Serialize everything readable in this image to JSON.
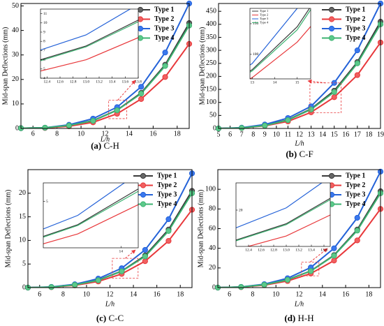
{
  "chart_data": [
    {
      "type": "line",
      "caption_label": "(a)",
      "caption_name": "C-H",
      "xlabel": "L/h",
      "ylabel": "Mid-span Deflections (mm)",
      "x": [
        5,
        7,
        9,
        11,
        13,
        15,
        17,
        19
      ],
      "xlim": [
        5,
        19
      ],
      "xticks": [
        6,
        8,
        10,
        12,
        14,
        16,
        18
      ],
      "ylim": [
        0,
        51
      ],
      "yticks": [
        0,
        10,
        20,
        30,
        40,
        50
      ],
      "series": [
        {
          "name": "Type 1",
          "color": "#3a3a3a",
          "values": [
            0.1,
            0.3,
            1.2,
            3.2,
            7.5,
            14.5,
            26,
            43
          ]
        },
        {
          "name": "Type 2",
          "color": "#e8383b",
          "values": [
            0.1,
            0.2,
            0.9,
            2.5,
            6.0,
            12,
            21,
            34.5
          ]
        },
        {
          "name": "Type 3",
          "color": "#2462d8",
          "values": [
            0.1,
            0.3,
            1.5,
            4,
            8.7,
            17,
            31,
            51
          ]
        },
        {
          "name": "Type 4",
          "color": "#3cb371",
          "values": [
            0.1,
            0.3,
            1.2,
            3.1,
            7.4,
            14.2,
            25.5,
            42
          ]
        }
      ],
      "inset": {
        "xlim": [
          12.3,
          13.8
        ],
        "ylim": [
          4,
          11.5
        ],
        "xticks": [
          12.4,
          12.6,
          12.8,
          {
            "value": 13,
            "label": "13.0"
          },
          13.2,
          13.4,
          13.6,
          13.8
        ],
        "yticks": [
          4,
          5,
          6,
          7,
          8,
          9,
          10,
          11
        ],
        "legend": false
      }
    },
    {
      "type": "line",
      "caption_label": "(b)",
      "caption_name": "C-F",
      "xlabel": "L/h",
      "ylabel": "Mid-span Deflections (mm)",
      "x": [
        5,
        7,
        9,
        11,
        13,
        15,
        17,
        19
      ],
      "xlim": [
        5,
        19
      ],
      "xticks": [
        5,
        6,
        7,
        8,
        9,
        10,
        11,
        12,
        13,
        14,
        15,
        16,
        17,
        18,
        19
      ],
      "ylim": [
        0,
        480
      ],
      "yticks": [
        0,
        50,
        100,
        150,
        200,
        250,
        300,
        350,
        400,
        450
      ],
      "series": [
        {
          "name": "Type 1",
          "color": "#3a3a3a",
          "values": [
            0,
            2,
            12,
            33,
            75,
            145,
            255,
            410
          ]
        },
        {
          "name": "Type 2",
          "color": "#e8383b",
          "values": [
            0,
            2,
            10,
            27,
            62,
            120,
            205,
            330
          ]
        },
        {
          "name": "Type 3",
          "color": "#2462d8",
          "values": [
            0,
            3,
            15,
            40,
            85,
            175,
            300,
            480
          ]
        },
        {
          "name": "Type 4",
          "color": "#3cb371",
          "values": [
            0,
            2,
            11,
            32,
            73,
            140,
            250,
            400
          ]
        }
      ],
      "inset": {
        "xlim": [
          12.9,
          15.6
        ],
        "ylim": [
          60,
          175
        ],
        "xticks": [
          13,
          14,
          15
        ],
        "yticks": [
          100,
          150
        ],
        "legend": true
      }
    },
    {
      "type": "line",
      "caption_label": "(c)",
      "caption_name": "C-C",
      "xlabel": "L/h",
      "ylabel": "Mid-span Deflections (mm)",
      "x": [
        5,
        7,
        9,
        11,
        13,
        15,
        17,
        19
      ],
      "xlim": [
        5,
        19
      ],
      "xticks": [
        6,
        8,
        10,
        12,
        14,
        16,
        18
      ],
      "ylim": [
        0,
        25
      ],
      "yticks": [
        0,
        5,
        10,
        15,
        20
      ],
      "series": [
        {
          "name": "Type 1",
          "color": "#3a3a3a",
          "values": [
            0,
            0.12,
            0.6,
            1.6,
            3.5,
            6.8,
            12.3,
            20.5
          ]
        },
        {
          "name": "Type 2",
          "color": "#e8383b",
          "values": [
            0,
            0.1,
            0.48,
            1.3,
            2.9,
            5.6,
            9.9,
            16.5
          ]
        },
        {
          "name": "Type 3",
          "color": "#2462d8",
          "values": [
            0,
            0.15,
            0.7,
            1.9,
            4.1,
            8,
            14.5,
            24.2
          ]
        },
        {
          "name": "Type 4",
          "color": "#3cb371",
          "values": [
            0,
            0.12,
            0.58,
            1.55,
            3.45,
            6.6,
            12,
            20
          ]
        }
      ],
      "inset": {
        "xlim": [
          12.2,
          14.4
        ],
        "ylim": [
          2,
          6.2
        ],
        "xticks": [
          14
        ],
        "yticks": [
          5
        ],
        "legend": false
      }
    },
    {
      "type": "line",
      "caption_label": "(d)",
      "caption_name": "H-H",
      "xlabel": "L/h",
      "ylabel": "Mid-span Deflections (mm)",
      "x": [
        5,
        7,
        9,
        11,
        13,
        15,
        17,
        19
      ],
      "xlim": [
        5,
        19
      ],
      "xticks": [
        6,
        8,
        10,
        12,
        14,
        16,
        18
      ],
      "ylim": [
        0,
        120
      ],
      "yticks": [
        0,
        20,
        40,
        60,
        80,
        100
      ],
      "series": [
        {
          "name": "Type 1",
          "color": "#3a3a3a",
          "values": [
            0,
            0.6,
            3,
            8,
            17,
            33,
            59,
            98
          ]
        },
        {
          "name": "Type 2",
          "color": "#e8383b",
          "values": [
            0,
            0.5,
            2.5,
            6.7,
            14.3,
            27.5,
            48,
            80
          ]
        },
        {
          "name": "Type 3",
          "color": "#2462d8",
          "values": [
            0,
            0.7,
            3.5,
            9.5,
            20.5,
            40,
            71,
            118
          ]
        },
        {
          "name": "Type 4",
          "color": "#3cb371",
          "values": [
            0,
            0.6,
            2.9,
            7.9,
            16.8,
            32.5,
            58,
            96
          ]
        }
      ],
      "inset": {
        "xlim": [
          12.2,
          13.7
        ],
        "ylim": [
          12,
          26
        ],
        "xticks": [
          12.4,
          12.6,
          12.8,
          {
            "value": 13,
            "label": "13.0"
          },
          13.2,
          13.4,
          13.6
        ],
        "yticks": [
          20
        ],
        "legend": false
      }
    }
  ]
}
